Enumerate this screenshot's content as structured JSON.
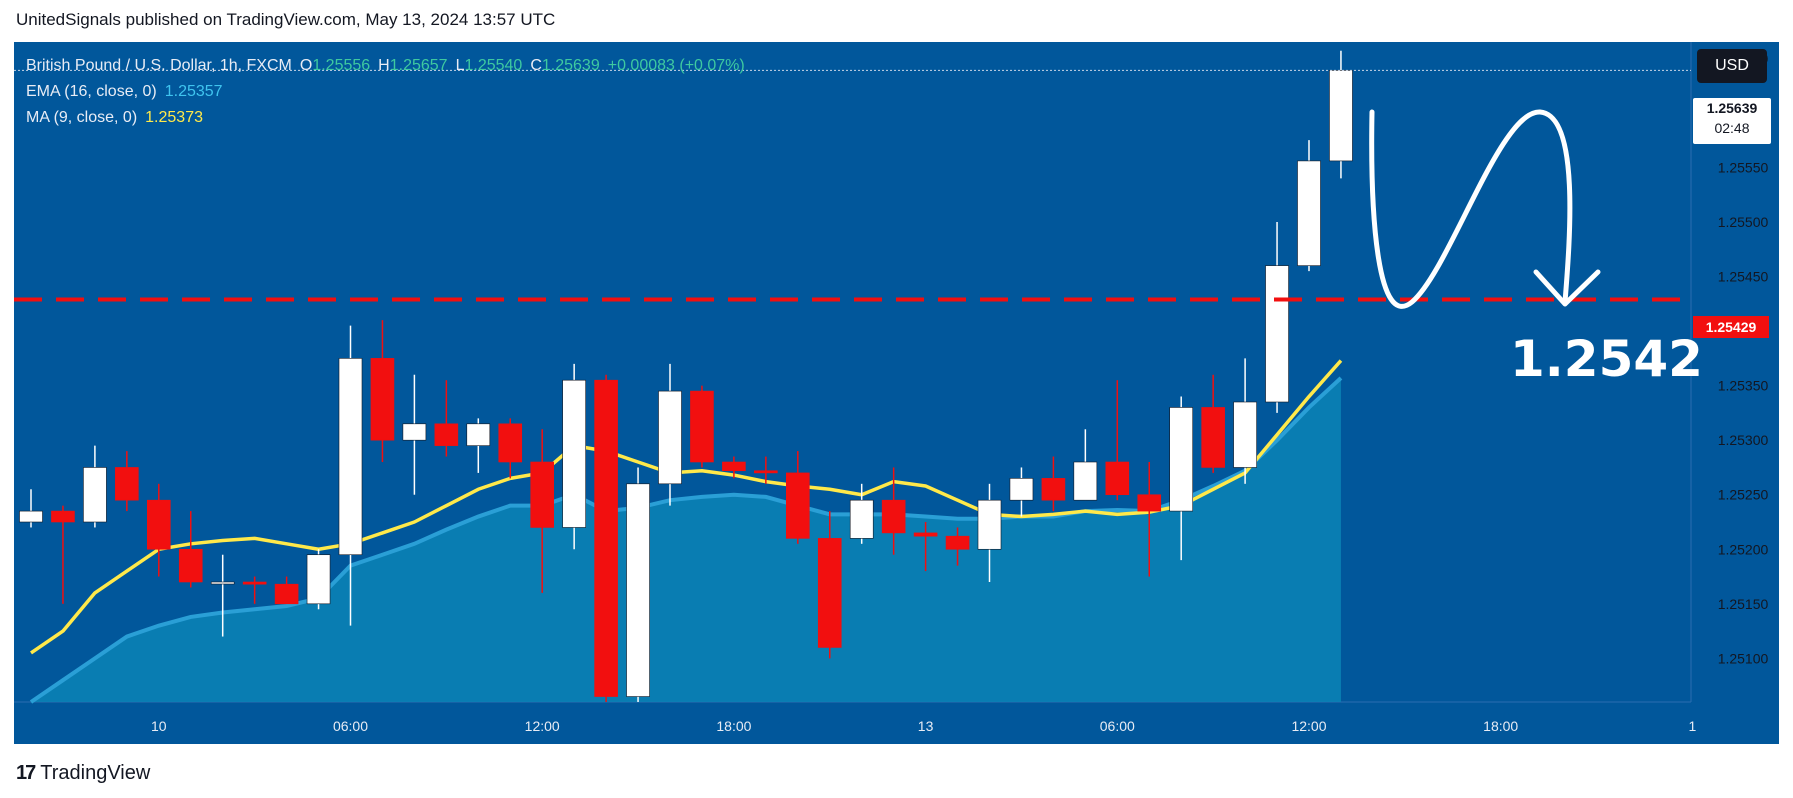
{
  "header": {
    "published_line": "UnitedSignals published on TradingView.com, May 13, 2024 13:57 UTC"
  },
  "footer": {
    "logo_mark": "17",
    "logo_text": "TradingView"
  },
  "legend": {
    "symbol": "British Pound / U.S. Dollar, 1h, FXCM",
    "open_label": "O",
    "open": "1.25556",
    "high_label": "H",
    "high": "1.25657",
    "low_label": "L",
    "low": "1.25540",
    "close_label": "C",
    "close": "1.25639",
    "change": "+0.00083 (+0.07%)",
    "ema_label": "EMA (16, close, 0)",
    "ema_value": "1.25357",
    "ma_label": "MA (9, close, 0)",
    "ma_value": "1.25373"
  },
  "currency_button": "USD",
  "last_price": {
    "price": "1.25639",
    "countdown": "02:48"
  },
  "support_level": {
    "value": 1.25429,
    "label": "1.25429",
    "annotation": "1.2542"
  },
  "colors": {
    "background": "#01579b",
    "up": "#ffffff",
    "down": "#f20f0f",
    "ema_fill": "#0a84b6",
    "ma_line": "#ffe94a",
    "level_line": "#f20f0f"
  },
  "chart_data": {
    "type": "candlestick",
    "timeframe": "1h",
    "y_axis": {
      "ticks": [
        "1.25100",
        "1.25150",
        "1.25200",
        "1.25250",
        "1.25300",
        "1.25350",
        "1.25400",
        "1.25450",
        "1.25500",
        "1.25550",
        "1.25600",
        "1.25650"
      ],
      "ylim": [
        1.2506,
        1.25665
      ]
    },
    "x_axis": {
      "ticks": [
        {
          "index": 4,
          "label": "10"
        },
        {
          "index": 10,
          "label": "06:00"
        },
        {
          "index": 16,
          "label": "12:00"
        },
        {
          "index": 22,
          "label": "18:00"
        },
        {
          "index": 28,
          "label": "13"
        },
        {
          "index": 34,
          "label": "06:00"
        },
        {
          "index": 40,
          "label": "12:00"
        },
        {
          "index": 46,
          "label": "18:00"
        },
        {
          "index": 52,
          "label": "1"
        }
      ]
    },
    "candles": [
      {
        "o": 1.25225,
        "h": 1.25255,
        "l": 1.2522,
        "c": 1.25235
      },
      {
        "o": 1.25235,
        "h": 1.2524,
        "l": 1.2515,
        "c": 1.25225
      },
      {
        "o": 1.25225,
        "h": 1.25295,
        "l": 1.2522,
        "c": 1.25275
      },
      {
        "o": 1.25275,
        "h": 1.2529,
        "l": 1.25235,
        "c": 1.25245
      },
      {
        "o": 1.25245,
        "h": 1.2526,
        "l": 1.25175,
        "c": 1.252
      },
      {
        "o": 1.252,
        "h": 1.25235,
        "l": 1.25165,
        "c": 1.2517
      },
      {
        "o": 1.2517,
        "h": 1.25195,
        "l": 1.2512,
        "c": 1.2517
      },
      {
        "o": 1.2517,
        "h": 1.25175,
        "l": 1.2515,
        "c": 1.25168
      },
      {
        "o": 1.25168,
        "h": 1.25175,
        "l": 1.2515,
        "c": 1.2515
      },
      {
        "o": 1.2515,
        "h": 1.252,
        "l": 1.25145,
        "c": 1.25195
      },
      {
        "o": 1.25195,
        "h": 1.25405,
        "l": 1.2513,
        "c": 1.25375
      },
      {
        "o": 1.25375,
        "h": 1.2541,
        "l": 1.2528,
        "c": 1.253
      },
      {
        "o": 1.253,
        "h": 1.2536,
        "l": 1.2525,
        "c": 1.25315
      },
      {
        "o": 1.25315,
        "h": 1.25355,
        "l": 1.25285,
        "c": 1.25295
      },
      {
        "o": 1.25295,
        "h": 1.2532,
        "l": 1.2527,
        "c": 1.25315
      },
      {
        "o": 1.25315,
        "h": 1.2532,
        "l": 1.25265,
        "c": 1.2528
      },
      {
        "o": 1.2528,
        "h": 1.2531,
        "l": 1.2516,
        "c": 1.2522
      },
      {
        "o": 1.2522,
        "h": 1.2537,
        "l": 1.252,
        "c": 1.25355
      },
      {
        "o": 1.25355,
        "h": 1.2536,
        "l": 1.2506,
        "c": 1.25065
      },
      {
        "o": 1.25065,
        "h": 1.25275,
        "l": 1.2506,
        "c": 1.2526
      },
      {
        "o": 1.2526,
        "h": 1.2537,
        "l": 1.2524,
        "c": 1.25345
      },
      {
        "o": 1.25345,
        "h": 1.2535,
        "l": 1.25275,
        "c": 1.2528
      },
      {
        "o": 1.2528,
        "h": 1.25285,
        "l": 1.25265,
        "c": 1.25272
      },
      {
        "o": 1.25272,
        "h": 1.25285,
        "l": 1.2526,
        "c": 1.2527
      },
      {
        "o": 1.2527,
        "h": 1.2529,
        "l": 1.25205,
        "c": 1.2521
      },
      {
        "o": 1.2521,
        "h": 1.25235,
        "l": 1.251,
        "c": 1.2511
      },
      {
        "o": 1.2521,
        "h": 1.2526,
        "l": 1.25205,
        "c": 1.25245
      },
      {
        "o": 1.25245,
        "h": 1.25275,
        "l": 1.25195,
        "c": 1.25215
      },
      {
        "o": 1.25215,
        "h": 1.25225,
        "l": 1.2518,
        "c": 1.25212
      },
      {
        "o": 1.25212,
        "h": 1.2522,
        "l": 1.25185,
        "c": 1.252
      },
      {
        "o": 1.252,
        "h": 1.2526,
        "l": 1.2517,
        "c": 1.25245
      },
      {
        "o": 1.25245,
        "h": 1.25275,
        "l": 1.2523,
        "c": 1.25265
      },
      {
        "o": 1.25265,
        "h": 1.25285,
        "l": 1.25235,
        "c": 1.25245
      },
      {
        "o": 1.25245,
        "h": 1.2531,
        "l": 1.25245,
        "c": 1.2528
      },
      {
        "o": 1.2528,
        "h": 1.25355,
        "l": 1.25245,
        "c": 1.2525
      },
      {
        "o": 1.2525,
        "h": 1.2528,
        "l": 1.25175,
        "c": 1.25235
      },
      {
        "o": 1.25235,
        "h": 1.2534,
        "l": 1.2519,
        "c": 1.2533
      },
      {
        "o": 1.2533,
        "h": 1.2536,
        "l": 1.2527,
        "c": 1.25275
      },
      {
        "o": 1.25275,
        "h": 1.25375,
        "l": 1.2526,
        "c": 1.25335
      },
      {
        "o": 1.25335,
        "h": 1.255,
        "l": 1.25325,
        "c": 1.2546
      },
      {
        "o": 1.2546,
        "h": 1.25575,
        "l": 1.25455,
        "c": 1.25556
      },
      {
        "o": 1.25556,
        "h": 1.25657,
        "l": 1.2554,
        "c": 1.25639
      }
    ],
    "ma_values": [
      1.25105,
      1.25125,
      1.2516,
      1.2518,
      1.252,
      1.25205,
      1.25208,
      1.2521,
      1.25205,
      1.252,
      1.25205,
      1.25215,
      1.25225,
      1.2524,
      1.25255,
      1.25265,
      1.2527,
      1.25295,
      1.2529,
      1.2528,
      1.2527,
      1.25272,
      1.25268,
      1.25262,
      1.25258,
      1.25255,
      1.2525,
      1.25262,
      1.25258,
      1.25245,
      1.25232,
      1.2523,
      1.25232,
      1.25235,
      1.25232,
      1.25234,
      1.2524,
      1.25255,
      1.2527,
      1.25305,
      1.2534,
      1.25373
    ],
    "ema_values": [
      1.2506,
      1.2508,
      1.251,
      1.2512,
      1.2513,
      1.25138,
      1.25142,
      1.25145,
      1.25148,
      1.25155,
      1.25185,
      1.25195,
      1.25205,
      1.25218,
      1.2523,
      1.2524,
      1.2524,
      1.2525,
      1.25235,
      1.25238,
      1.25245,
      1.25248,
      1.2525,
      1.25248,
      1.2524,
      1.25232,
      1.25232,
      1.25232,
      1.2523,
      1.25228,
      1.25228,
      1.2523,
      1.2523,
      1.25235,
      1.25236,
      1.25235,
      1.25245,
      1.25258,
      1.25272,
      1.253,
      1.2533,
      1.25357
    ]
  }
}
